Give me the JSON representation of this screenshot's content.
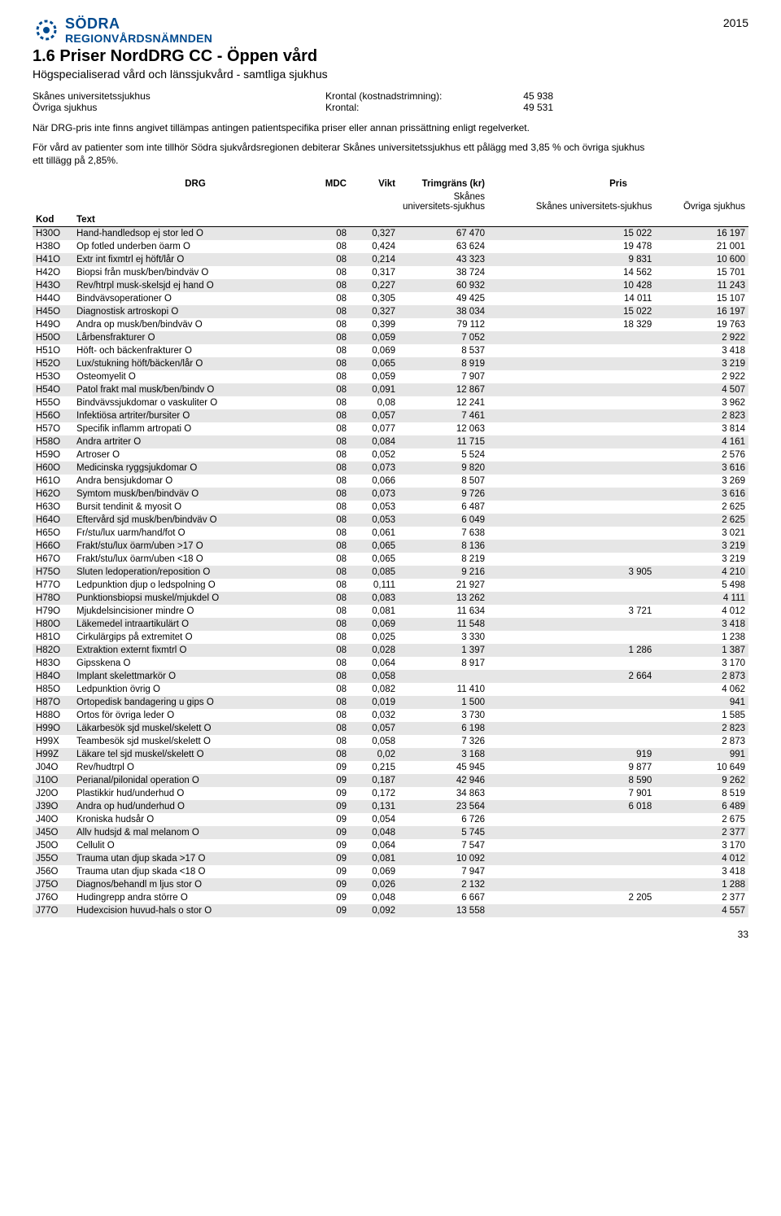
{
  "year": "2015",
  "logo": {
    "sodra": "SÖDRA",
    "region": "REGIONVÅRDSNÄMNDEN"
  },
  "title": "1.6  Priser NordDRG CC - Öppen vård",
  "subtitle": "Högspecialiserad vård och länssjukvård - samtliga sjukhus",
  "meta": [
    {
      "label": "Skånes universitetssjukhus",
      "mid": "Krontal (kostnadstrimning):",
      "val": "45 938"
    },
    {
      "label": "Övriga sjukhus",
      "mid": "Krontal:",
      "val": "49 531"
    }
  ],
  "para1": "När DRG-pris inte finns angivet tillämpas antingen patientspecifika priser eller annan prissättning enligt regelverket.",
  "para2": "För vård av patienter som inte tillhör Södra sjukvårdsregionen debiterar Skånes universitetssjukhus ett pålägg med 3,85 % och övriga sjukhus ett tillägg på 2,85%.",
  "columns": {
    "drg": "DRG",
    "mdc": "MDC",
    "vikt": "Vikt",
    "trim": "Trimgräns (kr)",
    "pris": "Pris",
    "kod": "Kod",
    "text": "Text",
    "sku_sub": "Skånes universitets-sjukhus",
    "ovr_sub": "Övriga sjukhus"
  },
  "page_number": "33",
  "colors": {
    "brand": "#004a8f",
    "shade": "#e6e6e6",
    "text": "#000000",
    "bg": "#ffffff"
  },
  "rows": [
    {
      "kod": "H30O",
      "text": "Hand-handledsop ej stor led O",
      "mdc": "08",
      "vikt": "0,327",
      "trim": "67 470",
      "p1": "15 022",
      "p2": "16 197"
    },
    {
      "kod": "H38O",
      "text": "Op fotled underben öarm O",
      "mdc": "08",
      "vikt": "0,424",
      "trim": "63 624",
      "p1": "19 478",
      "p2": "21 001"
    },
    {
      "kod": "H41O",
      "text": "Extr int fixmtrl ej höft/lår O",
      "mdc": "08",
      "vikt": "0,214",
      "trim": "43 323",
      "p1": "9 831",
      "p2": "10 600"
    },
    {
      "kod": "H42O",
      "text": "Biopsi från musk/ben/bindväv O",
      "mdc": "08",
      "vikt": "0,317",
      "trim": "38 724",
      "p1": "14 562",
      "p2": "15 701"
    },
    {
      "kod": "H43O",
      "text": "Rev/htrpl musk-skelsjd ej hand O",
      "mdc": "08",
      "vikt": "0,227",
      "trim": "60 932",
      "p1": "10 428",
      "p2": "11 243"
    },
    {
      "kod": "H44O",
      "text": "Bindvävsoperationer O",
      "mdc": "08",
      "vikt": "0,305",
      "trim": "49 425",
      "p1": "14 011",
      "p2": "15 107"
    },
    {
      "kod": "H45O",
      "text": "Diagnostisk artroskopi O",
      "mdc": "08",
      "vikt": "0,327",
      "trim": "38 034",
      "p1": "15 022",
      "p2": "16 197"
    },
    {
      "kod": "H49O",
      "text": "Andra op musk/ben/bindväv O",
      "mdc": "08",
      "vikt": "0,399",
      "trim": "79 112",
      "p1": "18 329",
      "p2": "19 763"
    },
    {
      "kod": "H50O",
      "text": "Lårbensfrakturer O",
      "mdc": "08",
      "vikt": "0,059",
      "trim": "7 052",
      "p1": "",
      "p2": "2 922"
    },
    {
      "kod": "H51O",
      "text": "Höft- och bäckenfrakturer O",
      "mdc": "08",
      "vikt": "0,069",
      "trim": "8 537",
      "p1": "",
      "p2": "3 418"
    },
    {
      "kod": "H52O",
      "text": "Lux/stukning höft/bäcken/lår O",
      "mdc": "08",
      "vikt": "0,065",
      "trim": "8 919",
      "p1": "",
      "p2": "3 219"
    },
    {
      "kod": "H53O",
      "text": "Osteomyelit O",
      "mdc": "08",
      "vikt": "0,059",
      "trim": "7 907",
      "p1": "",
      "p2": "2 922"
    },
    {
      "kod": "H54O",
      "text": "Patol frakt mal musk/ben/bindv O",
      "mdc": "08",
      "vikt": "0,091",
      "trim": "12 867",
      "p1": "",
      "p2": "4 507"
    },
    {
      "kod": "H55O",
      "text": "Bindvävssjukdomar o vaskuliter O",
      "mdc": "08",
      "vikt": "0,08",
      "trim": "12 241",
      "p1": "",
      "p2": "3 962"
    },
    {
      "kod": "H56O",
      "text": "Infektiösa artriter/bursiter O",
      "mdc": "08",
      "vikt": "0,057",
      "trim": "7 461",
      "p1": "",
      "p2": "2 823"
    },
    {
      "kod": "H57O",
      "text": "Specifik inflamm artropati O",
      "mdc": "08",
      "vikt": "0,077",
      "trim": "12 063",
      "p1": "",
      "p2": "3 814"
    },
    {
      "kod": "H58O",
      "text": "Andra artriter O",
      "mdc": "08",
      "vikt": "0,084",
      "trim": "11 715",
      "p1": "",
      "p2": "4 161"
    },
    {
      "kod": "H59O",
      "text": "Artroser O",
      "mdc": "08",
      "vikt": "0,052",
      "trim": "5 524",
      "p1": "",
      "p2": "2 576"
    },
    {
      "kod": "H60O",
      "text": "Medicinska ryggsjukdomar O",
      "mdc": "08",
      "vikt": "0,073",
      "trim": "9 820",
      "p1": "",
      "p2": "3 616"
    },
    {
      "kod": "H61O",
      "text": "Andra bensjukdomar O",
      "mdc": "08",
      "vikt": "0,066",
      "trim": "8 507",
      "p1": "",
      "p2": "3 269"
    },
    {
      "kod": "H62O",
      "text": "Symtom musk/ben/bindväv O",
      "mdc": "08",
      "vikt": "0,073",
      "trim": "9 726",
      "p1": "",
      "p2": "3 616"
    },
    {
      "kod": "H63O",
      "text": "Bursit tendinit & myosit O",
      "mdc": "08",
      "vikt": "0,053",
      "trim": "6 487",
      "p1": "",
      "p2": "2 625"
    },
    {
      "kod": "H64O",
      "text": "Eftervård sjd musk/ben/bindväv O",
      "mdc": "08",
      "vikt": "0,053",
      "trim": "6 049",
      "p1": "",
      "p2": "2 625"
    },
    {
      "kod": "H65O",
      "text": "Fr/stu/lux uarm/hand/fot O",
      "mdc": "08",
      "vikt": "0,061",
      "trim": "7 638",
      "p1": "",
      "p2": "3 021"
    },
    {
      "kod": "H66O",
      "text": "Frakt/stu/lux öarm/uben >17 O",
      "mdc": "08",
      "vikt": "0,065",
      "trim": "8 136",
      "p1": "",
      "p2": "3 219"
    },
    {
      "kod": "H67O",
      "text": "Frakt/stu/lux öarm/uben <18 O",
      "mdc": "08",
      "vikt": "0,065",
      "trim": "8 219",
      "p1": "",
      "p2": "3 219"
    },
    {
      "kod": "H75O",
      "text": "Sluten ledoperation/reposition O",
      "mdc": "08",
      "vikt": "0,085",
      "trim": "9 216",
      "p1": "3 905",
      "p2": "4 210"
    },
    {
      "kod": "H77O",
      "text": "Ledpunktion djup o ledspolning O",
      "mdc": "08",
      "vikt": "0,111",
      "trim": "21 927",
      "p1": "",
      "p2": "5 498"
    },
    {
      "kod": "H78O",
      "text": "Punktionsbiopsi muskel/mjukdel O",
      "mdc": "08",
      "vikt": "0,083",
      "trim": "13 262",
      "p1": "",
      "p2": "4 111"
    },
    {
      "kod": "H79O",
      "text": "Mjukdelsincisioner mindre O",
      "mdc": "08",
      "vikt": "0,081",
      "trim": "11 634",
      "p1": "3 721",
      "p2": "4 012"
    },
    {
      "kod": "H80O",
      "text": "Läkemedel intraartikulärt O",
      "mdc": "08",
      "vikt": "0,069",
      "trim": "11 548",
      "p1": "",
      "p2": "3 418"
    },
    {
      "kod": "H81O",
      "text": "Cirkulärgips på extremitet O",
      "mdc": "08",
      "vikt": "0,025",
      "trim": "3 330",
      "p1": "",
      "p2": "1 238"
    },
    {
      "kod": "H82O",
      "text": "Extraktion externt fixmtrl O",
      "mdc": "08",
      "vikt": "0,028",
      "trim": "1 397",
      "p1": "1 286",
      "p2": "1 387"
    },
    {
      "kod": "H83O",
      "text": "Gipsskena O",
      "mdc": "08",
      "vikt": "0,064",
      "trim": "8 917",
      "p1": "",
      "p2": "3 170"
    },
    {
      "kod": "H84O",
      "text": "Implant skelettmarkör O",
      "mdc": "08",
      "vikt": "0,058",
      "trim": "",
      "p1": "2 664",
      "p2": "2 873"
    },
    {
      "kod": "H85O",
      "text": "Ledpunktion övrig O",
      "mdc": "08",
      "vikt": "0,082",
      "trim": "11 410",
      "p1": "",
      "p2": "4 062"
    },
    {
      "kod": "H87O",
      "text": "Ortopedisk bandagering u gips O",
      "mdc": "08",
      "vikt": "0,019",
      "trim": "1 500",
      "p1": "",
      "p2": "941"
    },
    {
      "kod": "H88O",
      "text": "Ortos för övriga leder O",
      "mdc": "08",
      "vikt": "0,032",
      "trim": "3 730",
      "p1": "",
      "p2": "1 585"
    },
    {
      "kod": "H99O",
      "text": "Läkarbesök sjd muskel/skelett O",
      "mdc": "08",
      "vikt": "0,057",
      "trim": "6 198",
      "p1": "",
      "p2": "2 823"
    },
    {
      "kod": "H99X",
      "text": "Teambesök sjd muskel/skelett O",
      "mdc": "08",
      "vikt": "0,058",
      "trim": "7 326",
      "p1": "",
      "p2": "2 873"
    },
    {
      "kod": "H99Z",
      "text": "Läkare tel sjd muskel/skelett O",
      "mdc": "08",
      "vikt": "0,02",
      "trim": "3 168",
      "p1": "919",
      "p2": "991"
    },
    {
      "kod": "J04O",
      "text": "Rev/hudtrpl O",
      "mdc": "09",
      "vikt": "0,215",
      "trim": "45 945",
      "p1": "9 877",
      "p2": "10 649"
    },
    {
      "kod": "J10O",
      "text": "Perianal/pilonidal operation O",
      "mdc": "09",
      "vikt": "0,187",
      "trim": "42 946",
      "p1": "8 590",
      "p2": "9 262"
    },
    {
      "kod": "J20O",
      "text": "Plastikkir hud/underhud O",
      "mdc": "09",
      "vikt": "0,172",
      "trim": "34 863",
      "p1": "7 901",
      "p2": "8 519"
    },
    {
      "kod": "J39O",
      "text": "Andra op hud/underhud O",
      "mdc": "09",
      "vikt": "0,131",
      "trim": "23 564",
      "p1": "6 018",
      "p2": "6 489"
    },
    {
      "kod": "J40O",
      "text": "Kroniska hudsår O",
      "mdc": "09",
      "vikt": "0,054",
      "trim": "6 726",
      "p1": "",
      "p2": "2 675"
    },
    {
      "kod": "J45O",
      "text": "Allv hudsjd & mal melanom O",
      "mdc": "09",
      "vikt": "0,048",
      "trim": "5 745",
      "p1": "",
      "p2": "2 377"
    },
    {
      "kod": "J50O",
      "text": "Cellulit O",
      "mdc": "09",
      "vikt": "0,064",
      "trim": "7 547",
      "p1": "",
      "p2": "3 170"
    },
    {
      "kod": "J55O",
      "text": "Trauma utan djup skada >17 O",
      "mdc": "09",
      "vikt": "0,081",
      "trim": "10 092",
      "p1": "",
      "p2": "4 012"
    },
    {
      "kod": "J56O",
      "text": "Trauma utan djup skada <18 O",
      "mdc": "09",
      "vikt": "0,069",
      "trim": "7 947",
      "p1": "",
      "p2": "3 418"
    },
    {
      "kod": "J75O",
      "text": "Diagnos/behandl m ljus stor O",
      "mdc": "09",
      "vikt": "0,026",
      "trim": "2 132",
      "p1": "",
      "p2": "1 288"
    },
    {
      "kod": "J76O",
      "text": "Hudingrepp andra större O",
      "mdc": "09",
      "vikt": "0,048",
      "trim": "6 667",
      "p1": "2 205",
      "p2": "2 377"
    },
    {
      "kod": "J77O",
      "text": "Hudexcision huvud-hals o stor O",
      "mdc": "09",
      "vikt": "0,092",
      "trim": "13 558",
      "p1": "",
      "p2": "4 557"
    }
  ]
}
